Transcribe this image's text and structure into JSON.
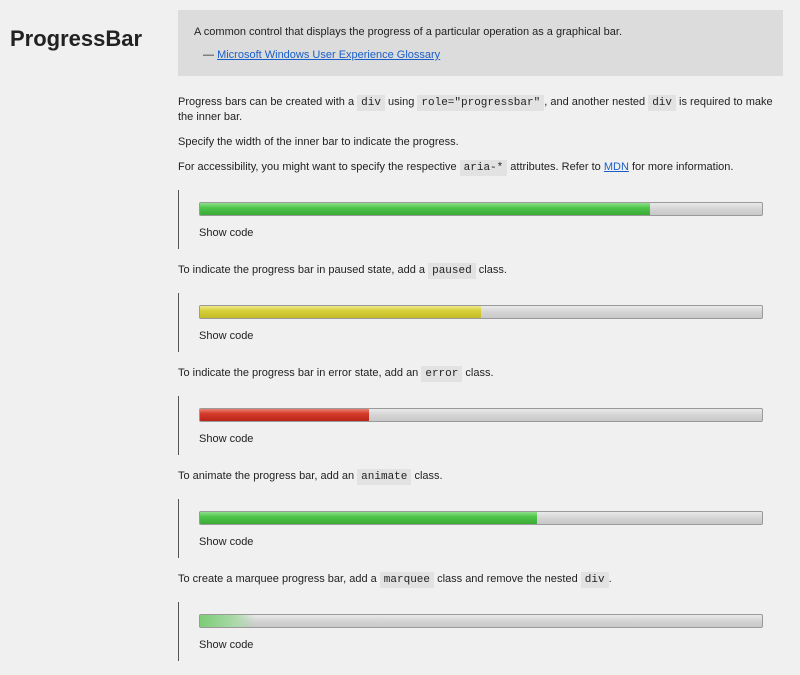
{
  "title": "ProgressBar",
  "quote": {
    "text": "A common control that displays the progress of a particular operation as a graphical bar.",
    "dash": "— ",
    "cite": "Microsoft Windows User Experience Glossary"
  },
  "intro": {
    "p1": [
      "Progress bars can be created with a ",
      "div",
      " using ",
      "role=\"progressbar\"",
      ", and another nested ",
      "div",
      " is required to make the inner bar."
    ],
    "p2": "Specify the width of the inner bar to indicate the progress.",
    "p3": [
      "For accessibility, you might want to specify the respective ",
      "aria-*",
      " attributes. Refer to ",
      "MDN",
      " for more information."
    ]
  },
  "sections": [
    {
      "progress": 80,
      "variant": "normal",
      "show_code": "Show code"
    },
    {
      "text": [
        "To indicate the progress bar in paused state, add a ",
        "paused",
        " class."
      ],
      "progress": 50,
      "variant": "paused",
      "show_code": "Show code"
    },
    {
      "text": [
        "To indicate the progress bar in error state, add an ",
        "error",
        " class."
      ],
      "progress": 30,
      "variant": "error",
      "show_code": "Show code"
    },
    {
      "text": [
        "To animate the progress bar, add an ",
        "animate",
        " class."
      ],
      "progress": 60,
      "variant": "animate",
      "show_code": "Show code"
    },
    {
      "text": [
        "To create a marquee progress bar, add a ",
        "marquee",
        " class and remove the nested ",
        "div",
        "."
      ],
      "variant": "marquee",
      "show_code": "Show code"
    }
  ],
  "colors": {
    "normal": "#4fc44a",
    "paused": "#d7cf3a",
    "error": "#d43a2a",
    "link": "#1a5fc8"
  }
}
